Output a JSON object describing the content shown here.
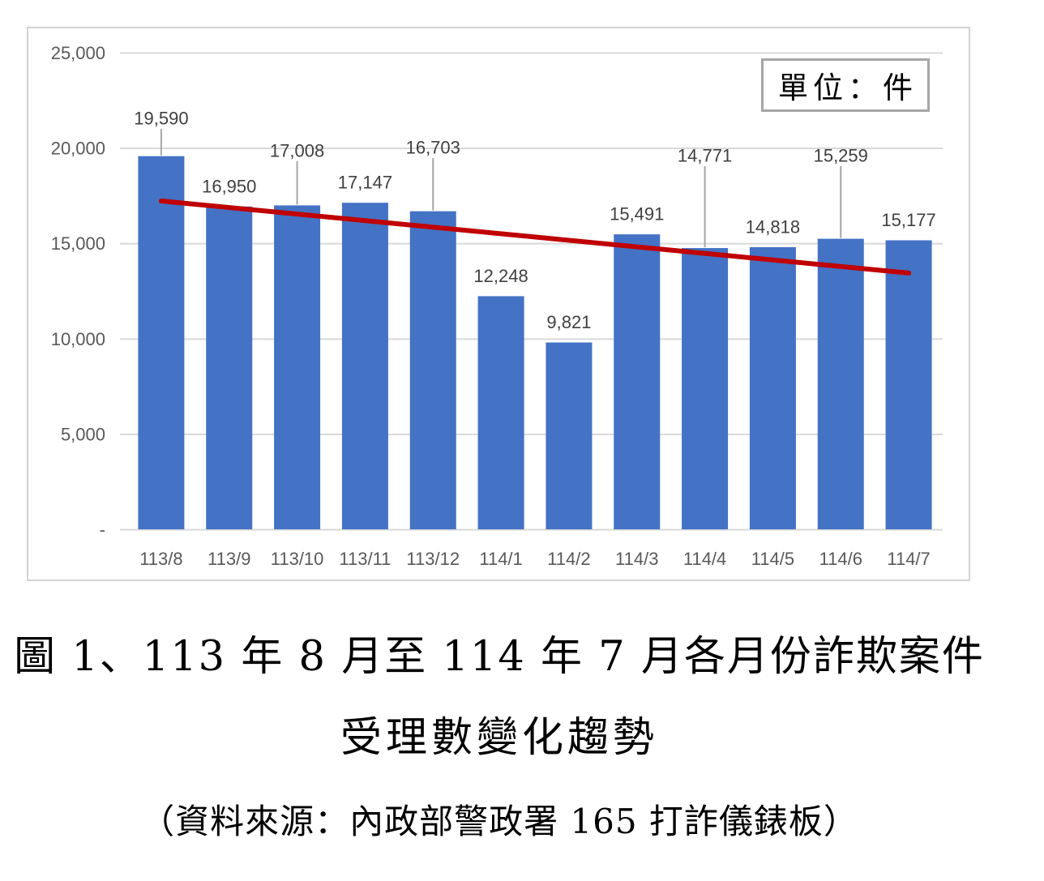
{
  "figure": {
    "caption_line1": "圖 1、113 年 8 月至 114 年 7 月各月份詐欺案件",
    "caption_line2": "受理數變化趨勢",
    "source_line": "（資料來源：內政部警政署 165 打詐儀錶板）"
  },
  "chart_data": {
    "type": "bar",
    "title": "113年8月至114年7月各月份詐欺案件受理數變化趨勢",
    "unit_label": "單位：件",
    "xlabel": "",
    "ylabel": "",
    "ylim": [
      0,
      25000
    ],
    "grid": true,
    "legend": "none",
    "yticks": [
      {
        "value": 0,
        "label": "-"
      },
      {
        "value": 5000,
        "label": "5,000"
      },
      {
        "value": 10000,
        "label": "10,000"
      },
      {
        "value": 15000,
        "label": "15,000"
      },
      {
        "value": 20000,
        "label": "20,000"
      },
      {
        "value": 25000,
        "label": "25,000"
      }
    ],
    "categories": [
      "113/8",
      "113/9",
      "113/10",
      "113/11",
      "113/12",
      "114/1",
      "114/2",
      "114/3",
      "114/4",
      "114/5",
      "114/6",
      "114/7"
    ],
    "values": [
      19590,
      16950,
      17008,
      17147,
      16703,
      12248,
      9821,
      15491,
      14771,
      14818,
      15259,
      15177
    ],
    "value_labels": [
      "19,590",
      "16,950",
      "17,008",
      "17,147",
      "16,703",
      "12,248",
      "9,821",
      "15,491",
      "14,771",
      "14,818",
      "15,259",
      "15,177"
    ],
    "callout_indices": [
      0,
      2,
      4,
      8,
      10
    ],
    "trend_line": {
      "start_value": 17240,
      "end_value": 13460,
      "color": "#C00000"
    },
    "colors": {
      "bar": "#4472C4",
      "grid": "#D9D9D9",
      "axis_text": "#595959",
      "value_text": "#404040",
      "leader": "#A6A6A6"
    }
  }
}
